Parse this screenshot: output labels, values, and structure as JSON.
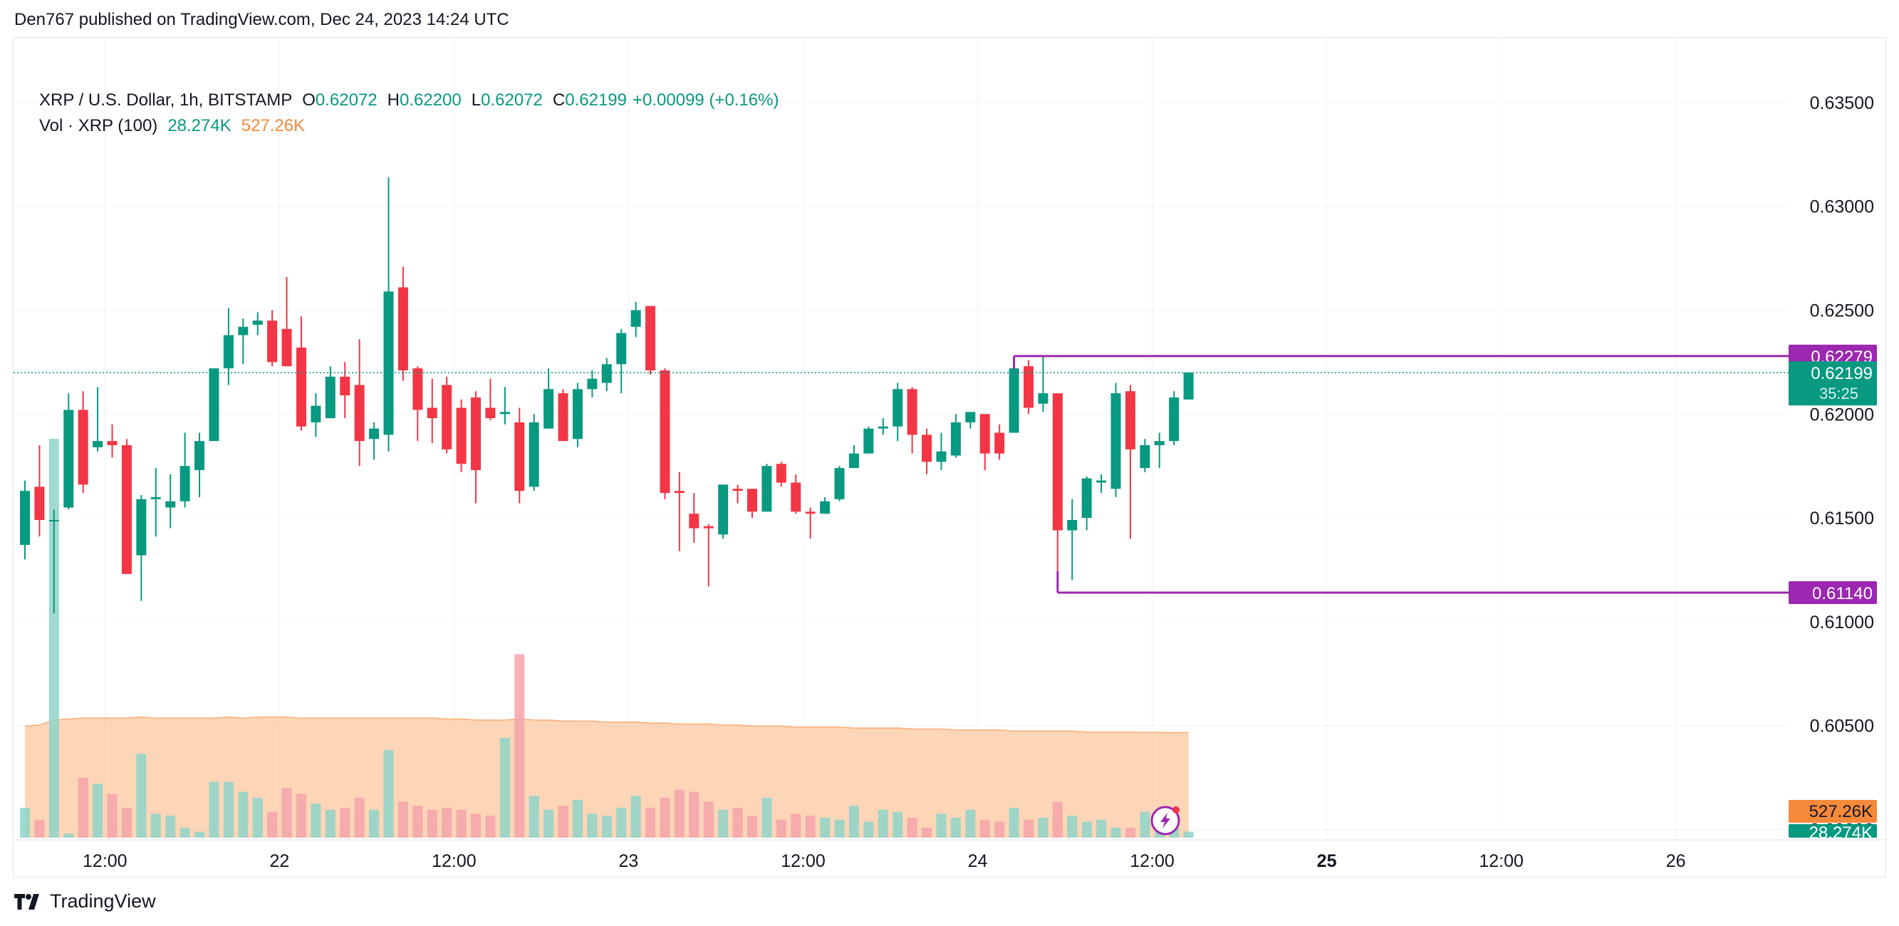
{
  "caption": "Den767 published on TradingView.com, Dec 24, 2023 14:24 UTC",
  "brand": "TradingView",
  "legend": {
    "symbol": "XRP / U.S. Dollar, 1h, BITSTAMP",
    "o_label": "O",
    "o_value": "0.62072",
    "h_label": "H",
    "h_value": "0.62200",
    "l_label": "L",
    "l_value": "0.62072",
    "c_label": "C",
    "c_value": "0.62199",
    "change": "+0.00099 (+0.16%)",
    "vol_label": "Vol · XRP (100)",
    "vol_value": "28.274K",
    "vol_ma_value": "527.26K"
  },
  "colors": {
    "up": "#089981",
    "down": "#f23645",
    "vol_up": "#8fd3c9",
    "vol_down": "#f5a3aa",
    "vol_ma_fill": "#fcc79f",
    "vol_ma_line": "#f7893b",
    "level": "#9c27b0",
    "grid": "#f0f3fa",
    "axis_text": "#131722"
  },
  "badge_icon": "lightning-icon",
  "chart_data": {
    "type": "candlestick",
    "title": "XRP / U.S. Dollar, 1h, BITSTAMP",
    "price_axis": {
      "range": [
        0.5995,
        0.6375
      ],
      "ticks": [
        "0.60000",
        "0.60500",
        "0.61000",
        "0.61500",
        "0.62000",
        "0.62500",
        "0.63000",
        "0.63500"
      ]
    },
    "time_axis": {
      "ticks": [
        {
          "label": "12:00",
          "hours": 5.5,
          "bold": false
        },
        {
          "label": "22",
          "hours": 17.5,
          "bold": false
        },
        {
          "label": "12:00",
          "hours": 29.5,
          "bold": false
        },
        {
          "label": "23",
          "hours": 41.5,
          "bold": false
        },
        {
          "label": "12:00",
          "hours": 53.5,
          "bold": false
        },
        {
          "label": "24",
          "hours": 65.5,
          "bold": false
        },
        {
          "label": "12:00",
          "hours": 77.5,
          "bold": false
        },
        {
          "label": "25",
          "hours": 89.5,
          "bold": true
        },
        {
          "label": "12:00",
          "hours": 101.5,
          "bold": false
        },
        {
          "label": "26",
          "hours": 113.5,
          "bold": false
        }
      ]
    },
    "candles": [
      [
        0.6137,
        0.6163,
        0.613,
        0.6168
      ],
      [
        0.6165,
        0.6149,
        0.6141,
        0.6185
      ],
      [
        0.6149,
        0.6149,
        0.6104,
        0.6154
      ],
      [
        0.6155,
        0.6202,
        0.6154,
        0.621
      ],
      [
        0.6202,
        0.6166,
        0.6162,
        0.6211
      ],
      [
        0.6184,
        0.6187,
        0.6182,
        0.6213
      ],
      [
        0.6187,
        0.6185,
        0.6179,
        0.6195
      ],
      [
        0.6185,
        0.6123,
        0.6123,
        0.6188
      ],
      [
        0.6132,
        0.6159,
        0.611,
        0.6161
      ],
      [
        0.6159,
        0.616,
        0.6141,
        0.6174
      ],
      [
        0.6155,
        0.6158,
        0.6145,
        0.6171
      ],
      [
        0.6158,
        0.6175,
        0.6155,
        0.6191
      ],
      [
        0.6173,
        0.6187,
        0.616,
        0.6191
      ],
      [
        0.6187,
        0.6222,
        0.6187,
        0.6222
      ],
      [
        0.6222,
        0.6238,
        0.6214,
        0.6251
      ],
      [
        0.6238,
        0.6242,
        0.6224,
        0.6246
      ],
      [
        0.6243,
        0.6245,
        0.6238,
        0.6249
      ],
      [
        0.6245,
        0.6225,
        0.6223,
        0.625
      ],
      [
        0.6241,
        0.6223,
        0.6223,
        0.6266
      ],
      [
        0.6232,
        0.6194,
        0.6192,
        0.6247
      ],
      [
        0.6196,
        0.6204,
        0.6189,
        0.621
      ],
      [
        0.6198,
        0.6218,
        0.6198,
        0.6223
      ],
      [
        0.6218,
        0.6209,
        0.6198,
        0.6225
      ],
      [
        0.6214,
        0.6187,
        0.6175,
        0.6236
      ],
      [
        0.6188,
        0.6193,
        0.6178,
        0.6196
      ],
      [
        0.619,
        0.6259,
        0.6182,
        0.6314
      ],
      [
        0.6261,
        0.6221,
        0.6216,
        0.6271
      ],
      [
        0.6222,
        0.6202,
        0.6187,
        0.6223
      ],
      [
        0.6203,
        0.6198,
        0.6186,
        0.6217
      ],
      [
        0.6214,
        0.6183,
        0.6181,
        0.6218
      ],
      [
        0.6203,
        0.6176,
        0.6172,
        0.6207
      ],
      [
        0.6208,
        0.6173,
        0.6157,
        0.6211
      ],
      [
        0.6203,
        0.6198,
        0.6197,
        0.6217
      ],
      [
        0.62,
        0.6201,
        0.6195,
        0.6213
      ],
      [
        0.6196,
        0.6163,
        0.6157,
        0.6203
      ],
      [
        0.6165,
        0.6196,
        0.6163,
        0.62
      ],
      [
        0.6193,
        0.6212,
        0.6193,
        0.6222
      ],
      [
        0.621,
        0.6187,
        0.6187,
        0.6212
      ],
      [
        0.6188,
        0.6212,
        0.6184,
        0.6215
      ],
      [
        0.6212,
        0.6217,
        0.6208,
        0.6221
      ],
      [
        0.6215,
        0.6224,
        0.6211,
        0.6227
      ],
      [
        0.6224,
        0.6239,
        0.621,
        0.6241
      ],
      [
        0.6242,
        0.625,
        0.6237,
        0.6254
      ],
      [
        0.6252,
        0.6221,
        0.6219,
        0.6252
      ],
      [
        0.6221,
        0.6162,
        0.6159,
        0.6222
      ],
      [
        0.6163,
        0.6162,
        0.6134,
        0.6172
      ],
      [
        0.6152,
        0.6145,
        0.6138,
        0.6162
      ],
      [
        0.6146,
        0.6145,
        0.6117,
        0.6147
      ],
      [
        0.6142,
        0.6166,
        0.614,
        0.6166
      ],
      [
        0.6164,
        0.6163,
        0.6157,
        0.6166
      ],
      [
        0.6164,
        0.6153,
        0.615,
        0.6164
      ],
      [
        0.6153,
        0.6175,
        0.6153,
        0.6176
      ],
      [
        0.6176,
        0.6167,
        0.6165,
        0.6177
      ],
      [
        0.6167,
        0.6153,
        0.6152,
        0.6171
      ],
      [
        0.6153,
        0.6152,
        0.614,
        0.6155
      ],
      [
        0.6152,
        0.6158,
        0.6152,
        0.616
      ],
      [
        0.6159,
        0.6174,
        0.6158,
        0.6175
      ],
      [
        0.6174,
        0.6181,
        0.6174,
        0.6185
      ],
      [
        0.6181,
        0.6193,
        0.6182,
        0.6194
      ],
      [
        0.6193,
        0.6194,
        0.619,
        0.6198
      ],
      [
        0.6194,
        0.6212,
        0.6187,
        0.6215
      ],
      [
        0.6212,
        0.619,
        0.6181,
        0.6213
      ],
      [
        0.619,
        0.6177,
        0.6171,
        0.6193
      ],
      [
        0.6177,
        0.6182,
        0.6173,
        0.6191
      ],
      [
        0.618,
        0.6196,
        0.6179,
        0.62
      ],
      [
        0.6196,
        0.6201,
        0.6193,
        0.6201
      ],
      [
        0.62,
        0.6181,
        0.6173,
        0.62
      ],
      [
        0.6191,
        0.6181,
        0.6178,
        0.6195
      ],
      [
        0.6191,
        0.6222,
        0.6191,
        0.6224
      ],
      [
        0.6223,
        0.6203,
        0.62,
        0.6226
      ],
      [
        0.6205,
        0.621,
        0.6201,
        0.6228
      ],
      [
        0.621,
        0.6144,
        0.6116,
        0.621
      ],
      [
        0.6144,
        0.6149,
        0.612,
        0.6159
      ],
      [
        0.615,
        0.6169,
        0.6144,
        0.617
      ],
      [
        0.6167,
        0.6168,
        0.6162,
        0.6171
      ],
      [
        0.6164,
        0.621,
        0.616,
        0.6215
      ],
      [
        0.6211,
        0.6183,
        0.614,
        0.6214
      ],
      [
        0.6174,
        0.6185,
        0.6172,
        0.6188
      ],
      [
        0.6185,
        0.6187,
        0.6174,
        0.6191
      ],
      [
        0.6187,
        0.6208,
        0.6185,
        0.6211
      ],
      [
        0.6207,
        0.622,
        0.6207,
        0.622
      ]
    ],
    "volume": {
      "ma_label": "527.26K",
      "last_label": "28.274K",
      "range": [
        0,
        2500000
      ],
      "bars": [
        150000,
        90000,
        2000000,
        20000,
        300000,
        270000,
        220000,
        150000,
        420000,
        120000,
        110000,
        50000,
        30000,
        280000,
        280000,
        230000,
        200000,
        130000,
        250000,
        220000,
        170000,
        140000,
        150000,
        200000,
        140000,
        440000,
        180000,
        160000,
        140000,
        150000,
        140000,
        120000,
        110000,
        500000,
        920000,
        210000,
        140000,
        160000,
        190000,
        120000,
        110000,
        150000,
        210000,
        150000,
        200000,
        240000,
        230000,
        180000,
        140000,
        150000,
        110000,
        200000,
        90000,
        120000,
        110000,
        100000,
        90000,
        160000,
        80000,
        140000,
        130000,
        100000,
        50000,
        120000,
        100000,
        140000,
        90000,
        80000,
        150000,
        90000,
        100000,
        180000,
        110000,
        80000,
        90000,
        50000,
        50000,
        130000,
        30000,
        80000,
        30000
      ],
      "ma": [
        560000,
        565000,
        590000,
        595000,
        600000,
        600000,
        600000,
        600000,
        605000,
        600000,
        600000,
        600000,
        600000,
        600000,
        605000,
        600000,
        605000,
        605000,
        605000,
        600000,
        600000,
        600000,
        600000,
        600000,
        600000,
        600000,
        600000,
        600000,
        600000,
        595000,
        595000,
        590000,
        590000,
        590000,
        595000,
        590000,
        590000,
        585000,
        585000,
        585000,
        580000,
        580000,
        580000,
        575000,
        575000,
        570000,
        570000,
        570000,
        565000,
        565000,
        560000,
        560000,
        560000,
        555000,
        555000,
        555000,
        555000,
        550000,
        550000,
        550000,
        550000,
        545000,
        545000,
        545000,
        540000,
        540000,
        540000,
        540000,
        535000,
        535000,
        535000,
        535000,
        535000,
        530000,
        530000,
        530000,
        530000,
        528000,
        528000,
        527000,
        527260
      ]
    },
    "levels": [
      {
        "label": "0.62279",
        "price": 0.62279,
        "from_index": 68
      },
      {
        "label": "0.61140",
        "price": 0.6114,
        "from_index": 71
      }
    ],
    "last_price": {
      "label": "0.62199",
      "price": 0.62199,
      "countdown": "35:25"
    }
  }
}
